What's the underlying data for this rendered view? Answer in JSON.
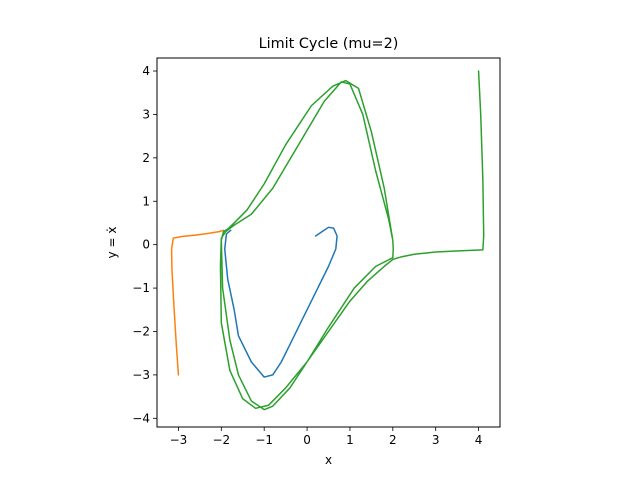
{
  "chart_data": {
    "type": "line",
    "title": "Limit Cycle (mu=2)",
    "xlabel": "x",
    "ylabel": "y = ẋ",
    "xlim": [
      -3.5,
      4.5
    ],
    "ylim": [
      -4.2,
      4.3
    ],
    "xticks": [
      "−3",
      "−2",
      "−1",
      "0",
      "1",
      "2",
      "3",
      "4"
    ],
    "xtick_values": [
      -3,
      -2,
      -1,
      0,
      1,
      2,
      3,
      4
    ],
    "yticks": [
      "−4",
      "−3",
      "−2",
      "−1",
      "0",
      "1",
      "2",
      "3",
      "4"
    ],
    "ytick_values": [
      -4,
      -3,
      -2,
      -1,
      0,
      1,
      2,
      3,
      4
    ],
    "grid": false,
    "legend": false,
    "series": [
      {
        "color": "#1f77b4",
        "x": [
          0.2,
          0.35,
          0.5,
          0.62,
          0.7,
          0.67,
          0.5,
          0.2,
          -0.1,
          -0.4,
          -0.6,
          -0.8,
          -1.0,
          -1.3,
          -1.6,
          -1.7,
          -1.85,
          -1.92,
          -1.88,
          -1.78
        ],
        "y": [
          0.2,
          0.3,
          0.4,
          0.38,
          0.2,
          -0.1,
          -0.5,
          -1.1,
          -1.7,
          -2.3,
          -2.7,
          -3.0,
          -3.05,
          -2.7,
          -2.1,
          -1.5,
          -0.8,
          -0.1,
          0.25,
          0.33
        ]
      },
      {
        "color": "#ff7f0e",
        "x": [
          -3.0,
          -3.05,
          -3.1,
          -3.15,
          -3.16,
          -3.12,
          -2.9,
          -2.6,
          -2.3,
          -2.05,
          -1.95
        ],
        "y": [
          -3.0,
          -2.3,
          -1.5,
          -0.6,
          -0.1,
          0.15,
          0.19,
          0.22,
          0.26,
          0.3,
          0.33
        ]
      },
      {
        "color": "#2ca02c",
        "x": [
          4.0,
          4.05,
          4.1,
          4.12,
          4.1,
          3.6,
          3.0,
          2.5,
          2.2,
          2.0,
          1.8,
          1.4,
          1.0,
          0.5,
          0.0,
          -0.5,
          -0.9,
          -1.2,
          -1.5,
          -1.8,
          -2.0,
          -2.02,
          -2.0,
          -1.9,
          -1.7,
          -1.3,
          -0.8,
          -0.2,
          0.4,
          0.8,
          1.0,
          1.3,
          1.6,
          1.9,
          2.0,
          2.01,
          2.0,
          1.9,
          1.6,
          1.1,
          0.5,
          0.0,
          -0.4,
          -0.8,
          -1.0,
          -1.3,
          -1.6,
          -1.8,
          -1.97,
          -2.0,
          -1.95,
          -1.85,
          -1.7,
          -1.4,
          -1.0,
          -0.5,
          0.1,
          0.6,
          0.9,
          1.2,
          1.5,
          1.8,
          1.95,
          2.0
        ],
        "y": [
          4.0,
          3.0,
          1.5,
          0.2,
          -0.12,
          -0.14,
          -0.17,
          -0.22,
          -0.28,
          -0.34,
          -0.5,
          -0.85,
          -1.3,
          -2.0,
          -2.7,
          -3.3,
          -3.7,
          -3.77,
          -3.55,
          -2.9,
          -1.8,
          -0.5,
          0.15,
          0.3,
          0.45,
          0.7,
          1.3,
          2.3,
          3.3,
          3.75,
          3.7,
          3.0,
          1.7,
          0.6,
          0.1,
          -0.1,
          -0.3,
          -0.35,
          -0.5,
          -1.0,
          -1.9,
          -2.7,
          -3.3,
          -3.72,
          -3.8,
          -3.6,
          -3.0,
          -2.2,
          -1.0,
          0.1,
          0.3,
          0.36,
          0.5,
          0.8,
          1.4,
          2.3,
          3.2,
          3.65,
          3.78,
          3.6,
          2.6,
          1.3,
          0.4,
          0.1
        ]
      }
    ]
  }
}
